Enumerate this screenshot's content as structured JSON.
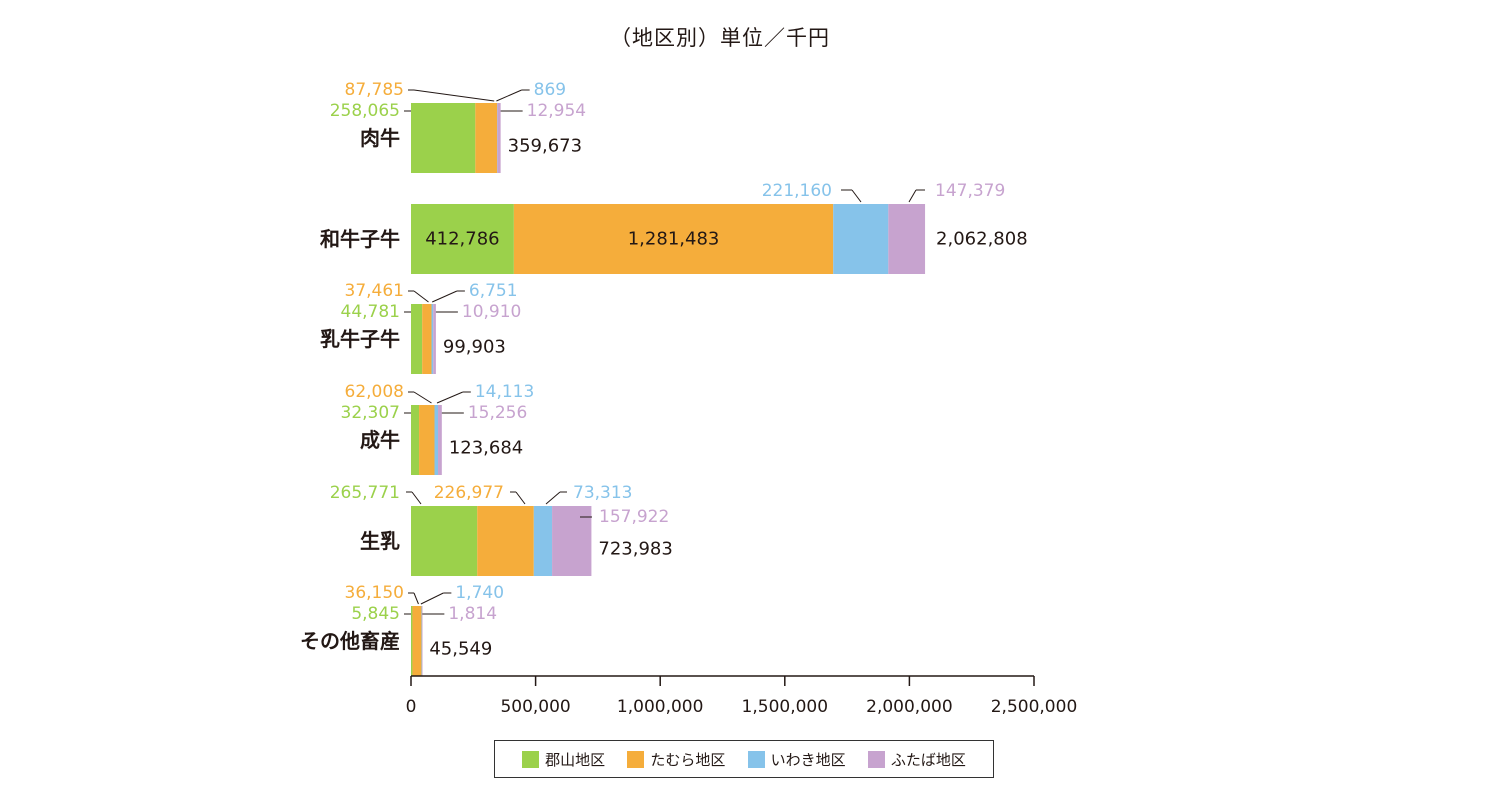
{
  "chart_data": {
    "type": "bar",
    "orientation": "horizontal",
    "stacked": true,
    "title": "（地区別）単位／千円",
    "categories": [
      "肉牛",
      "和牛子牛",
      "乳牛子牛",
      "成牛",
      "生乳",
      "その他畜産"
    ],
    "series": [
      {
        "name": "郡山地区",
        "color": "#9bd14b",
        "values": [
          258065,
          412786,
          44781,
          32307,
          265771,
          5845
        ],
        "labels": [
          "258,065",
          "412,786",
          "44,781",
          "32,307",
          "265,771",
          "5,845"
        ]
      },
      {
        "name": "たむら地区",
        "color": "#f5ad3b",
        "values": [
          87785,
          1281483,
          37461,
          62008,
          226977,
          36150
        ],
        "labels": [
          "87,785",
          "1,281,483",
          "37,461",
          "62,008",
          "226,977",
          "36,150"
        ]
      },
      {
        "name": "いわき地区",
        "color": "#86c3ea",
        "values": [
          869,
          221160,
          6751,
          14113,
          73313,
          1740
        ],
        "labels": [
          "869",
          "221,160",
          "6,751",
          "14,113",
          "73,313",
          "1,740"
        ]
      },
      {
        "name": "ふたば地区",
        "color": "#c7a3cf",
        "values": [
          12954,
          147379,
          10910,
          15256,
          157922,
          1814
        ],
        "labels": [
          "12,954",
          "147,379",
          "10,910",
          "15,256",
          "157,922",
          "1,814"
        ]
      }
    ],
    "totals": [
      "359,673",
      "2,062,808",
      "99,903",
      "123,684",
      "723,983",
      "45,549"
    ],
    "xlim": [
      0,
      2500000
    ],
    "xticks": [
      0,
      500000,
      1000000,
      1500000,
      2000000,
      2500000
    ],
    "xtick_labels": [
      "0",
      "500,000",
      "1,000,000",
      "1,500,000",
      "2,000,000",
      "2,500,000"
    ],
    "grid": false,
    "legend_position": "bottom",
    "total_label_color": "#231815",
    "axis_color": "#231815"
  }
}
